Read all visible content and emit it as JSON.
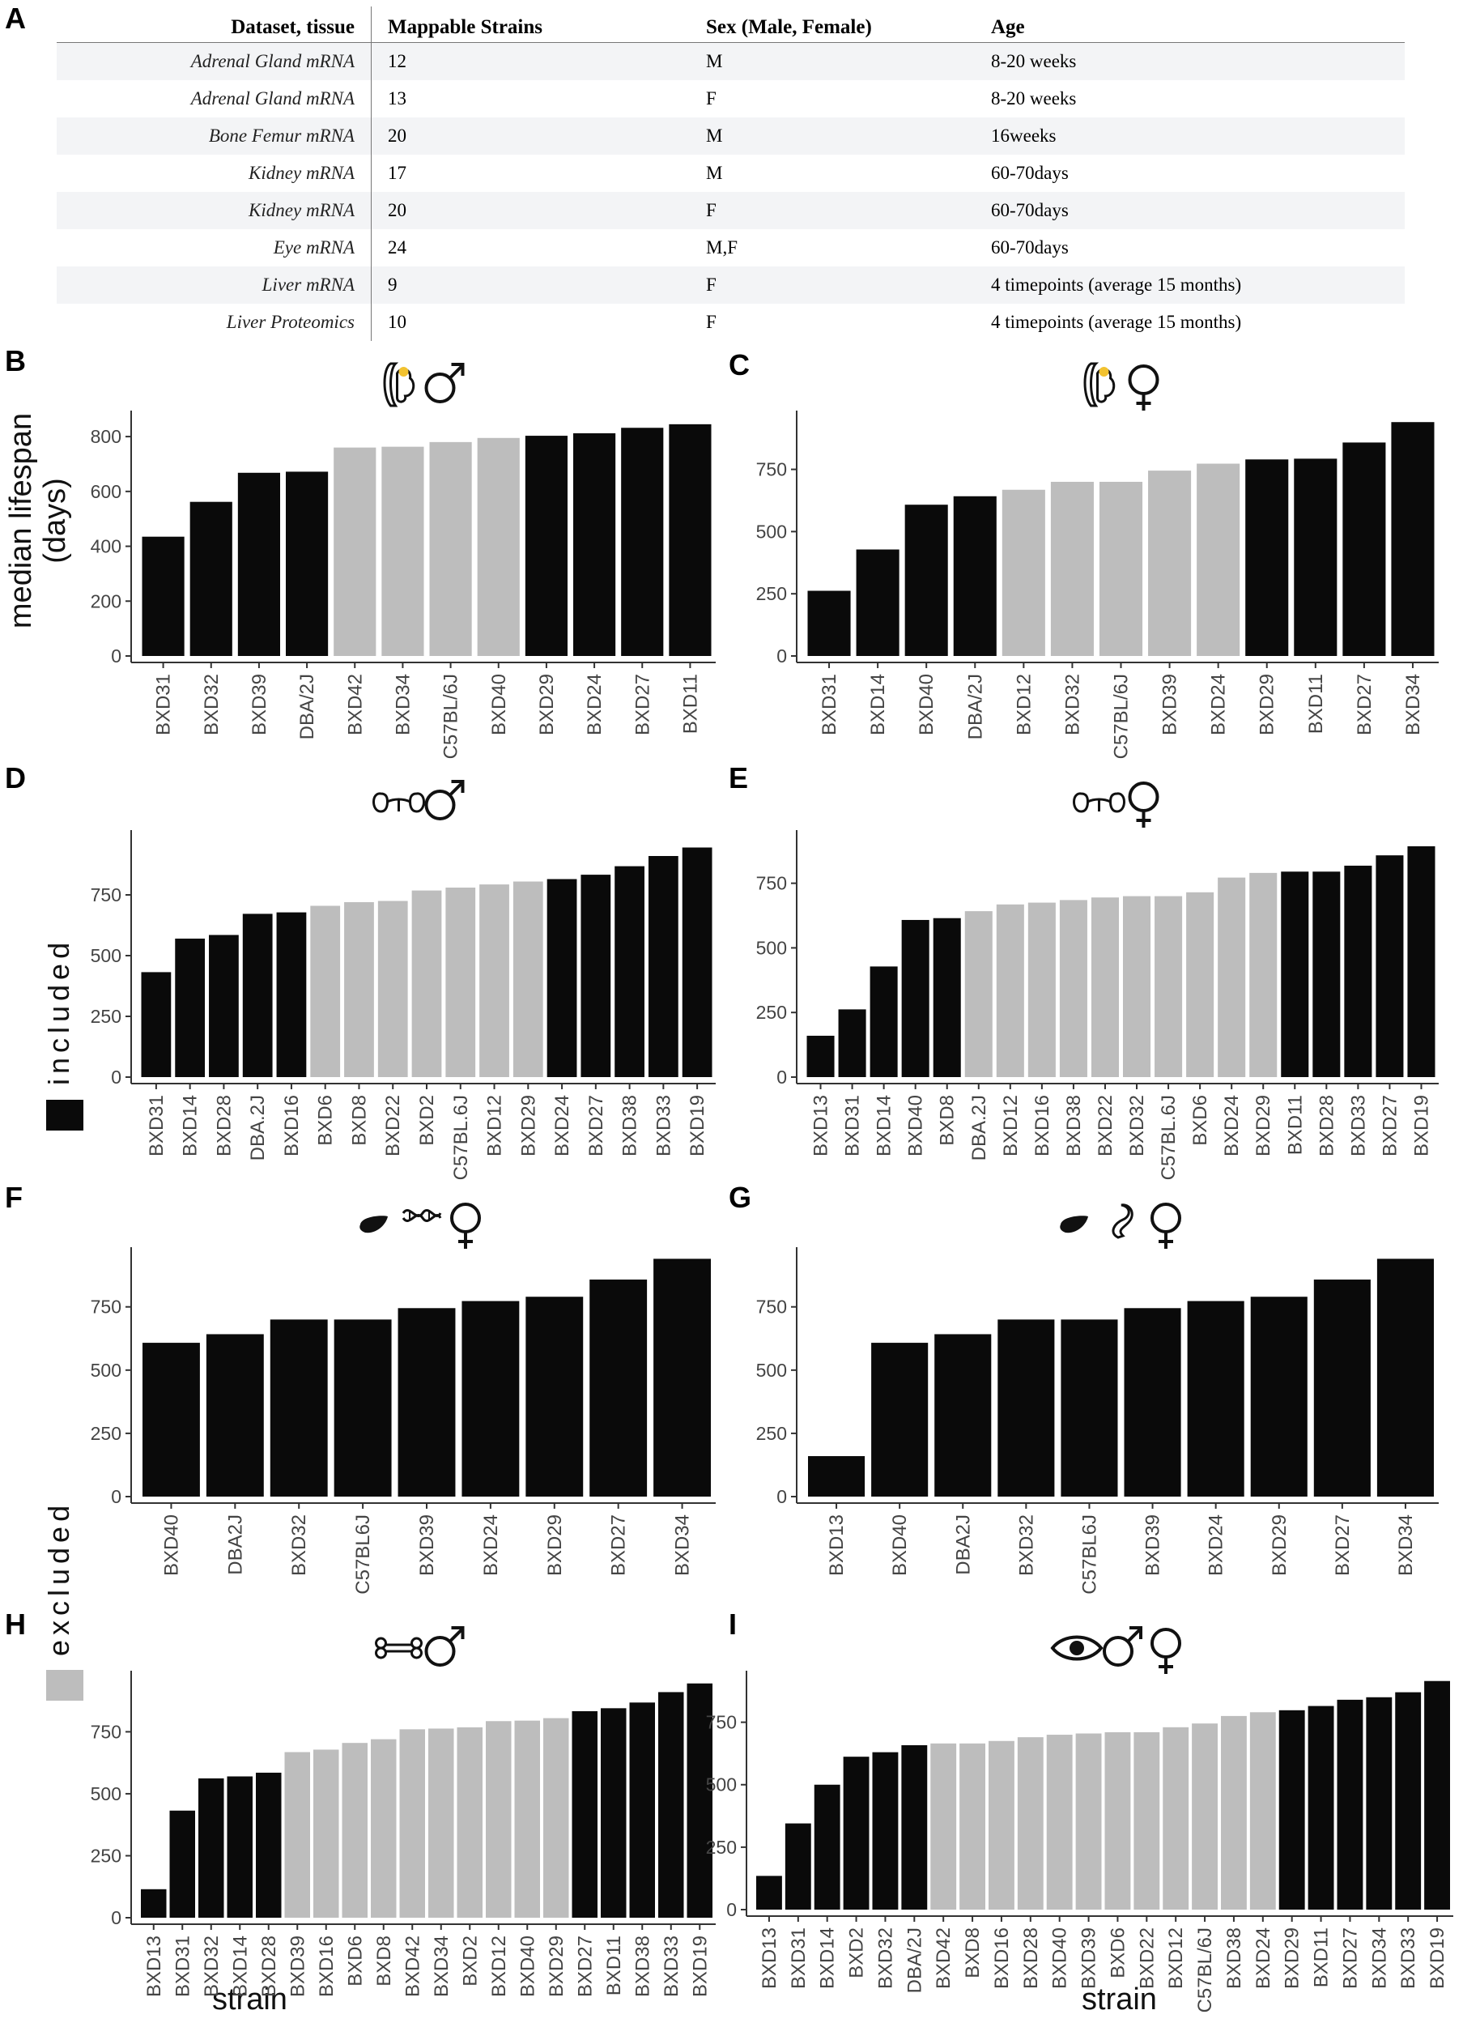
{
  "panels": {
    "A": "A",
    "B": "B",
    "C": "C",
    "D": "D",
    "E": "E",
    "F": "F",
    "G": "G",
    "H": "H",
    "I": "I"
  },
  "table": {
    "headers": [
      "Dataset, tissue",
      "Mappable Strains",
      "Sex (Male, Female)",
      "Age"
    ],
    "rows": [
      [
        "Adrenal Gland mRNA",
        "12",
        "M",
        "8-20 weeks"
      ],
      [
        "Adrenal Gland mRNA",
        "13",
        "F",
        "8-20 weeks"
      ],
      [
        "Bone Femur mRNA",
        "20",
        "M",
        "16weeks"
      ],
      [
        "Kidney mRNA",
        "17",
        "M",
        "60-70days"
      ],
      [
        "Kidney mRNA",
        "20",
        "F",
        "60-70days"
      ],
      [
        "Eye mRNA",
        "24",
        "M,F",
        "60-70days"
      ],
      [
        "Liver mRNA",
        "9",
        "F",
        "4 timepoints (average 15 months)"
      ],
      [
        "Liver Proteomics",
        "10",
        "F",
        "4 timepoints (average 15 months)"
      ]
    ]
  },
  "y_label": "median lifespan\n(days)",
  "x_label": "strain",
  "legend": {
    "included": {
      "label": "included",
      "color": "#0a0a0a"
    },
    "excluded": {
      "label": "excluded",
      "color": "#bdbdbd"
    }
  },
  "colors": {
    "included": "#0a0a0a",
    "excluded": "#bdbdbd",
    "axis": "#333333"
  },
  "chart_data": [
    {
      "panel": "B",
      "type": "bar",
      "icons": [
        "adrenal-gland-icon",
        "male-icon"
      ],
      "ylim": [
        0,
        880
      ],
      "yticks": [
        0,
        200,
        400,
        600,
        800
      ],
      "categories": [
        "BXD31",
        "BXD32",
        "BXD39",
        "DBA/2J",
        "BXD42",
        "BXD34",
        "C57BL/6J",
        "BXD40",
        "BXD29",
        "BXD24",
        "BXD27",
        "BXD11"
      ],
      "values": [
        435,
        562,
        668,
        672,
        760,
        763,
        780,
        795,
        803,
        812,
        832,
        845
      ],
      "included": [
        1,
        1,
        1,
        1,
        0,
        0,
        0,
        0,
        1,
        1,
        1,
        1
      ]
    },
    {
      "panel": "C",
      "type": "bar",
      "icons": [
        "adrenal-gland-icon",
        "female-icon"
      ],
      "ylim": [
        0,
        970
      ],
      "yticks": [
        0,
        250,
        500,
        750
      ],
      "categories": [
        "BXD31",
        "BXD14",
        "BXD40",
        "DBA/2J",
        "BXD12",
        "BXD32",
        "C57BL/6J",
        "BXD39",
        "BXD24",
        "BXD29",
        "BXD11",
        "BXD27",
        "BXD34"
      ],
      "values": [
        262,
        428,
        608,
        642,
        668,
        700,
        700,
        745,
        773,
        790,
        793,
        858,
        940
      ],
      "included": [
        1,
        1,
        1,
        1,
        0,
        0,
        0,
        0,
        0,
        1,
        1,
        1,
        1
      ]
    },
    {
      "panel": "D",
      "type": "bar",
      "icons": [
        "kidney-icon",
        "male-icon"
      ],
      "ylim": [
        0,
        1000
      ],
      "yticks": [
        0,
        250,
        500,
        750
      ],
      "categories": [
        "BXD31",
        "BXD14",
        "BXD28",
        "DBA.2J",
        "BXD16",
        "BXD6",
        "BXD8",
        "BXD22",
        "BXD2",
        "C57BL.6J",
        "BXD12",
        "BXD29",
        "BXD24",
        "BXD27",
        "BXD38",
        "BXD33",
        "BXD19"
      ],
      "values": [
        432,
        570,
        585,
        672,
        678,
        705,
        720,
        725,
        768,
        780,
        793,
        805,
        815,
        833,
        868,
        910,
        945
      ],
      "included": [
        1,
        1,
        1,
        1,
        1,
        0,
        0,
        0,
        0,
        0,
        0,
        0,
        1,
        1,
        1,
        1,
        1
      ]
    },
    {
      "panel": "E",
      "type": "bar",
      "icons": [
        "kidney-icon",
        "female-icon"
      ],
      "ylim": [
        0,
        940
      ],
      "yticks": [
        0,
        250,
        500,
        750
      ],
      "categories": [
        "BXD13",
        "BXD31",
        "BXD14",
        "BXD40",
        "BXD8",
        "DBA.2J",
        "BXD12",
        "BXD16",
        "BXD38",
        "BXD22",
        "BXD32",
        "C57BL.6J",
        "BXD6",
        "BXD24",
        "BXD29",
        "BXD11",
        "BXD28",
        "BXD33",
        "BXD27",
        "BXD19"
      ],
      "values": [
        160,
        262,
        428,
        608,
        615,
        642,
        668,
        675,
        685,
        695,
        700,
        700,
        715,
        772,
        790,
        795,
        795,
        818,
        858,
        893
      ],
      "included": [
        1,
        1,
        1,
        1,
        1,
        0,
        0,
        0,
        0,
        0,
        0,
        0,
        0,
        0,
        0,
        1,
        1,
        1,
        1,
        1
      ]
    },
    {
      "panel": "F",
      "type": "bar",
      "icons": [
        "liver-icon",
        "dna-icon",
        "female-icon"
      ],
      "ylim": [
        0,
        970
      ],
      "yticks": [
        0,
        250,
        500,
        750
      ],
      "categories": [
        "BXD40",
        "DBA2J",
        "BXD32",
        "C57BL6J",
        "BXD39",
        "BXD24",
        "BXD29",
        "BXD27",
        "BXD34"
      ],
      "values": [
        608,
        642,
        700,
        700,
        745,
        773,
        790,
        858,
        940
      ],
      "included": [
        1,
        1,
        1,
        1,
        1,
        1,
        1,
        1,
        1
      ]
    },
    {
      "panel": "G",
      "type": "bar",
      "icons": [
        "liver-icon",
        "protein-icon",
        "female-icon"
      ],
      "ylim": [
        0,
        970
      ],
      "yticks": [
        0,
        250,
        500,
        750
      ],
      "categories": [
        "BXD13",
        "BXD40",
        "DBA2J",
        "BXD32",
        "C57BL6J",
        "BXD39",
        "BXD24",
        "BXD29",
        "BXD27",
        "BXD34"
      ],
      "values": [
        160,
        608,
        642,
        700,
        700,
        745,
        773,
        790,
        858,
        940
      ],
      "included": [
        1,
        1,
        1,
        1,
        1,
        1,
        1,
        1,
        1,
        1
      ]
    },
    {
      "panel": "H",
      "type": "bar",
      "icons": [
        "bone-icon",
        "male-icon"
      ],
      "ylim": [
        0,
        980
      ],
      "yticks": [
        0,
        250,
        500,
        750
      ],
      "categories": [
        "BXD13",
        "BXD31",
        "BXD32",
        "BXD14",
        "BXD28",
        "BXD39",
        "BXD16",
        "BXD6",
        "BXD8",
        "BXD42",
        "BXD34",
        "BXD2",
        "BXD12",
        "BXD40",
        "BXD29",
        "BXD27",
        "BXD11",
        "BXD38",
        "BXD33",
        "BXD19"
      ],
      "values": [
        115,
        432,
        562,
        570,
        585,
        668,
        678,
        705,
        720,
        760,
        763,
        768,
        793,
        795,
        805,
        833,
        845,
        868,
        910,
        945
      ],
      "included": [
        1,
        1,
        1,
        1,
        1,
        0,
        0,
        0,
        0,
        0,
        0,
        0,
        0,
        0,
        0,
        1,
        1,
        1,
        1,
        1
      ]
    },
    {
      "panel": "I",
      "type": "bar",
      "icons": [
        "eye-icon",
        "male-icon",
        "female-icon"
      ],
      "ylim": [
        0,
        940
      ],
      "yticks": [
        0,
        250,
        500,
        750
      ],
      "categories": [
        "BXD13",
        "BXD31",
        "BXD14",
        "BXD2",
        "BXD32",
        "DBA/2J",
        "BXD42",
        "BXD8",
        "BXD16",
        "BXD28",
        "BXD40",
        "BXD39",
        "BXD6",
        "BXD22",
        "BXD12",
        "C57BL/6J",
        "BXD38",
        "BXD24",
        "BXD29",
        "BXD11",
        "BXD27",
        "BXD34",
        "BXD33",
        "BXD19"
      ],
      "values": [
        135,
        345,
        500,
        612,
        630,
        658,
        665,
        665,
        675,
        690,
        700,
        705,
        710,
        710,
        730,
        745,
        775,
        790,
        798,
        815,
        840,
        850,
        870,
        915
      ],
      "included": [
        1,
        1,
        1,
        1,
        1,
        1,
        0,
        0,
        0,
        0,
        0,
        0,
        0,
        0,
        0,
        0,
        0,
        0,
        1,
        1,
        1,
        1,
        1,
        1
      ]
    }
  ]
}
